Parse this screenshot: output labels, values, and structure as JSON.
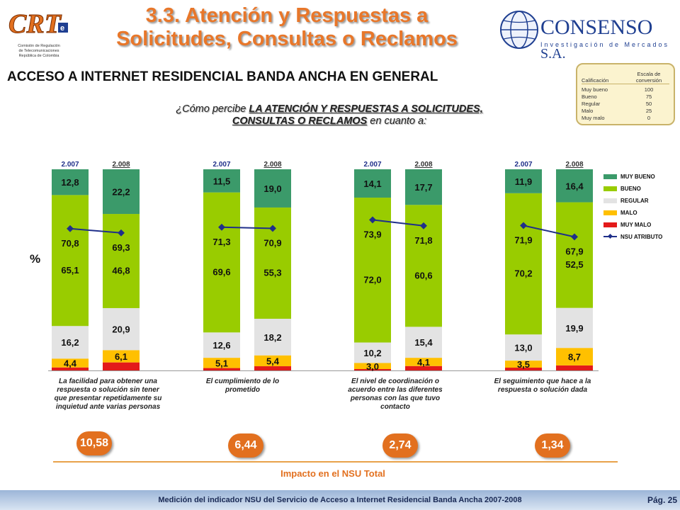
{
  "header": {
    "title_line1": "3.3. Atención y Respuestas a",
    "title_line2": "Solicitudes, Consultas o Reclamos",
    "crt_logo_text": "CRT",
    "crt_sub_1": "Comisión de Regulación",
    "crt_sub_2": "de Telecomunicaciones",
    "crt_sub_3": "República de Colombia",
    "consenso_name": "CONSENSO",
    "consenso_sa": "S.A.",
    "consenso_tagline": "Investigación de Mercados"
  },
  "subtitle": "ACCESO A INTERNET RESIDENCIAL BANDA ANCHA EN GENERAL",
  "question": {
    "prefix": "¿Cómo percibe ",
    "bold1": "LA ATENCIÓN Y RESPUESTAS A SOLICITUDES,",
    "bold2": "CONSULTAS O RECLAMOS",
    "suffix": " en cuanto a:"
  },
  "scale": {
    "col1": "Calificación",
    "col2": "Escala de conversión",
    "rows": [
      {
        "label": "Muy bueno",
        "value": "100"
      },
      {
        "label": "Bueno",
        "value": "75"
      },
      {
        "label": "Regular",
        "value": "50"
      },
      {
        "label": "Malo",
        "value": "25"
      },
      {
        "label": "Muy malo",
        "value": "0"
      }
    ]
  },
  "y_unit": "%",
  "impact_label": "Impacto en el NSU Total",
  "footer": "Medición del indicador NSU del Servicio de Acceso a Internet Residencial Banda Ancha 2007-2008",
  "page": "Pág. 25",
  "impacts": [
    "10,58",
    "6,44",
    "2,74",
    "1,34"
  ],
  "colors": {
    "muy_bueno": "#3b9a6a",
    "bueno": "#99cc00",
    "regular": "#e3e3e3",
    "malo": "#ffc000",
    "muy_malo": "#e31a1a",
    "nsu": "#1f2f8a",
    "accent": "#e2701f"
  },
  "chart_data": {
    "type": "bar",
    "stacked": true,
    "ylim": [
      0,
      100
    ],
    "ylabel": "%",
    "legend": [
      "MUY BUENO",
      "BUENO",
      "REGULAR",
      "MALO",
      "MUY MALO",
      "NSU ATRIBUTO"
    ],
    "legend_position": "right",
    "groups": [
      {
        "label": "La facilidad para obtener una respuesta o solución sin tener que presentar repetidamente su inquietud ante varias personas",
        "bars": [
          {
            "year": "2.007",
            "muy_malo": 1.5,
            "muy_malo_label": "",
            "malo": 4.4,
            "malo_label": "4,4",
            "regular": 16.2,
            "regular_label": "16,2",
            "bueno": 65.1,
            "bueno_label": "65,1",
            "muy_bueno": 12.8,
            "muy_bueno_label": "12,8",
            "nsu": 70.8,
            "nsu_label": "70,8"
          },
          {
            "year": "2.008",
            "muy_malo": 4.0,
            "muy_malo_label": "",
            "malo": 6.1,
            "malo_label": "6,1",
            "regular": 20.9,
            "regular_label": "20,9",
            "bueno": 46.8,
            "bueno_label": "46,8",
            "muy_bueno": 22.2,
            "muy_bueno_label": "22,2",
            "nsu": 69.3,
            "nsu_label": "69,3"
          }
        ]
      },
      {
        "label": "El cumplimiento de lo prometido",
        "bars": [
          {
            "year": "2.007",
            "muy_malo": 1.2,
            "muy_malo_label": "",
            "malo": 5.1,
            "malo_label": "5,1",
            "regular": 12.6,
            "regular_label": "12,6",
            "bueno": 69.6,
            "bueno_label": "69,6",
            "muy_bueno": 11.5,
            "muy_bueno_label": "11,5",
            "nsu": 71.3,
            "nsu_label": "71,3"
          },
          {
            "year": "2.008",
            "muy_malo": 2.1,
            "muy_malo_label": "",
            "malo": 5.4,
            "malo_label": "5,4",
            "regular": 18.2,
            "regular_label": "18,2",
            "bueno": 55.3,
            "bueno_label": "55,3",
            "muy_bueno": 19.0,
            "muy_bueno_label": "19,0",
            "nsu": 70.9,
            "nsu_label": "70,9"
          }
        ]
      },
      {
        "label": "El nivel de coordinación o acuerdo entre las diferentes personas con las que tuvo contacto",
        "bars": [
          {
            "year": "2.007",
            "muy_malo": 0.7,
            "muy_malo_label": "",
            "malo": 3.0,
            "malo_label": "3,0",
            "regular": 10.2,
            "regular_label": "10,2",
            "bueno": 72.0,
            "bueno_label": "72,0",
            "muy_bueno": 14.1,
            "muy_bueno_label": "14,1",
            "nsu": 73.9,
            "nsu_label": "73,9"
          },
          {
            "year": "2.008",
            "muy_malo": 2.2,
            "muy_malo_label": "",
            "malo": 4.1,
            "malo_label": "4,1",
            "regular": 15.4,
            "regular_label": "15,4",
            "bueno": 60.6,
            "bueno_label": "60,6",
            "muy_bueno": 17.7,
            "muy_bueno_label": "17,7",
            "nsu": 71.8,
            "nsu_label": "71,8"
          }
        ]
      },
      {
        "label": "El seguimiento que hace a la respuesta o solución dada",
        "bars": [
          {
            "year": "2.007",
            "muy_malo": 1.4,
            "muy_malo_label": "",
            "malo": 3.5,
            "malo_label": "3,5",
            "regular": 13.0,
            "regular_label": "13,0",
            "bueno": 70.2,
            "bueno_label": "70,2",
            "muy_bueno": 11.9,
            "muy_bueno_label": "11,9",
            "nsu": 71.9,
            "nsu_label": "71,9"
          },
          {
            "year": "2.008",
            "muy_malo": 2.5,
            "muy_malo_label": "",
            "malo": 8.7,
            "malo_label": "8,7",
            "regular": 19.9,
            "regular_label": "19,9",
            "bueno": 52.5,
            "bueno_label": "52,5",
            "muy_bueno": 16.4,
            "muy_bueno_label": "16,4",
            "nsu": 67.9,
            "nsu_label": "67,9"
          }
        ]
      }
    ]
  }
}
